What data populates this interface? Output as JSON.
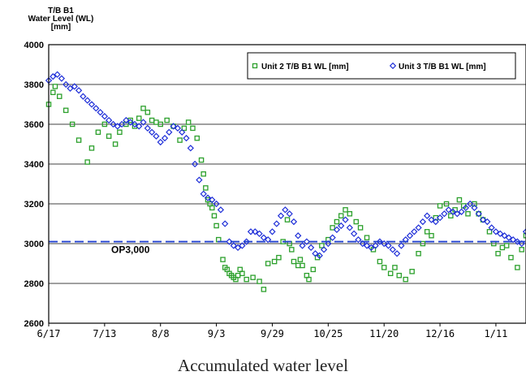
{
  "chart_data": {
    "type": "scatter",
    "title": "",
    "caption": "Accumulated water level",
    "ylabel_lines": [
      "T/B B1",
      "Water Level (WL)",
      "[mm]"
    ],
    "xlabel": "",
    "ylim": [
      2600,
      4000
    ],
    "yticks": [
      2600,
      2800,
      3000,
      3200,
      3400,
      3600,
      3800,
      4000
    ],
    "x_tick_labels": [
      "6/17",
      "7/13",
      "8/8",
      "9/3",
      "9/29",
      "10/25",
      "11/20",
      "12/16",
      "1/11"
    ],
    "x_tick_days": [
      0,
      26,
      52,
      78,
      104,
      130,
      156,
      182,
      208
    ],
    "x_range_days": [
      0,
      222
    ],
    "grid": "horizontal",
    "legend_position": "top-right",
    "reference_line": {
      "label": "OP3,000",
      "value": 3010,
      "color": "#1f3fd0"
    },
    "series": [
      {
        "name": "Unit 2 T/B B1 WL [mm]",
        "marker": "square",
        "color": "#2ca02c",
        "x": [
          0,
          2,
          3,
          5,
          8,
          11,
          14,
          18,
          20,
          23,
          26,
          28,
          31,
          33,
          36,
          38,
          40,
          42,
          44,
          46,
          48,
          50,
          52,
          55,
          58,
          61,
          63,
          65,
          67,
          69,
          71,
          72,
          73,
          74,
          75,
          76,
          77,
          78,
          79,
          81,
          82,
          83,
          84,
          85,
          86,
          87,
          88,
          89,
          90,
          92,
          95,
          98,
          100,
          102,
          105,
          107,
          109,
          111,
          112,
          113,
          114,
          116,
          117,
          118,
          120,
          121,
          123,
          125,
          127,
          130,
          132,
          134,
          136,
          138,
          140,
          143,
          145,
          148,
          151,
          154,
          156,
          159,
          161,
          163,
          166,
          169,
          172,
          174,
          176,
          178,
          180,
          182,
          185,
          187,
          189,
          191,
          193,
          195,
          198,
          200,
          202,
          205,
          207,
          209,
          211,
          213,
          215,
          218,
          220,
          222
        ],
        "y": [
          3700,
          3760,
          3790,
          3740,
          3670,
          3600,
          3520,
          3410,
          3480,
          3560,
          3600,
          3540,
          3500,
          3560,
          3600,
          3620,
          3590,
          3630,
          3680,
          3660,
          3620,
          3610,
          3600,
          3620,
          3590,
          3520,
          3580,
          3610,
          3580,
          3530,
          3420,
          3350,
          3280,
          3220,
          3200,
          3180,
          3140,
          3090,
          3020,
          2920,
          2880,
          2870,
          2850,
          2840,
          2830,
          2820,
          2840,
          2870,
          2850,
          2820,
          2830,
          2810,
          2770,
          2900,
          2910,
          2930,
          3010,
          3120,
          3000,
          2970,
          2910,
          2890,
          2920,
          2890,
          2840,
          2820,
          2870,
          2930,
          2990,
          3020,
          3080,
          3110,
          3140,
          3170,
          3150,
          3110,
          3080,
          3030,
          2970,
          2910,
          2880,
          2850,
          2880,
          2840,
          2820,
          2860,
          2950,
          3000,
          3060,
          3040,
          3130,
          3190,
          3200,
          3140,
          3170,
          3220,
          3190,
          3150,
          3200,
          3150,
          3120,
          3060,
          3000,
          2950,
          2980,
          2990,
          2930,
          2880,
          2970,
          3040
        ]
      },
      {
        "name": "Unit 3 T/B B1 WL [mm]",
        "marker": "diamond",
        "color": "#1f2fd8",
        "x": [
          0,
          2,
          4,
          6,
          8,
          10,
          12,
          14,
          16,
          18,
          20,
          22,
          24,
          26,
          28,
          30,
          32,
          34,
          36,
          38,
          40,
          42,
          44,
          46,
          48,
          50,
          52,
          54,
          56,
          58,
          60,
          62,
          64,
          66,
          68,
          70,
          72,
          74,
          76,
          78,
          80,
          82,
          84,
          86,
          88,
          90,
          92,
          94,
          96,
          98,
          100,
          102,
          104,
          106,
          108,
          110,
          112,
          114,
          116,
          118,
          120,
          122,
          124,
          126,
          128,
          130,
          132,
          134,
          136,
          138,
          140,
          142,
          144,
          146,
          148,
          150,
          152,
          154,
          156,
          158,
          160,
          162,
          164,
          166,
          168,
          170,
          172,
          174,
          176,
          178,
          180,
          182,
          184,
          186,
          188,
          190,
          192,
          194,
          196,
          198,
          200,
          202,
          204,
          206,
          208,
          210,
          212,
          214,
          216,
          218,
          220,
          222
        ],
        "y": [
          3820,
          3840,
          3850,
          3830,
          3800,
          3780,
          3790,
          3770,
          3740,
          3720,
          3700,
          3680,
          3660,
          3640,
          3620,
          3600,
          3590,
          3600,
          3620,
          3610,
          3600,
          3590,
          3610,
          3580,
          3560,
          3540,
          3510,
          3530,
          3560,
          3590,
          3580,
          3560,
          3530,
          3480,
          3400,
          3320,
          3250,
          3230,
          3220,
          3200,
          3170,
          3100,
          3010,
          2990,
          2980,
          2990,
          3010,
          3060,
          3060,
          3050,
          3030,
          3020,
          3060,
          3100,
          3140,
          3170,
          3150,
          3110,
          3040,
          2990,
          3010,
          2980,
          2950,
          2940,
          2970,
          3000,
          3030,
          3070,
          3090,
          3120,
          3080,
          3050,
          3020,
          3000,
          2990,
          2980,
          2990,
          3010,
          3000,
          2990,
          2970,
          2950,
          2990,
          3020,
          3040,
          3060,
          3080,
          3110,
          3140,
          3120,
          3110,
          3130,
          3150,
          3170,
          3160,
          3150,
          3160,
          3180,
          3200,
          3180,
          3150,
          3120,
          3110,
          3080,
          3060,
          3050,
          3040,
          3030,
          3020,
          3010,
          3000,
          3060
        ]
      }
    ]
  }
}
